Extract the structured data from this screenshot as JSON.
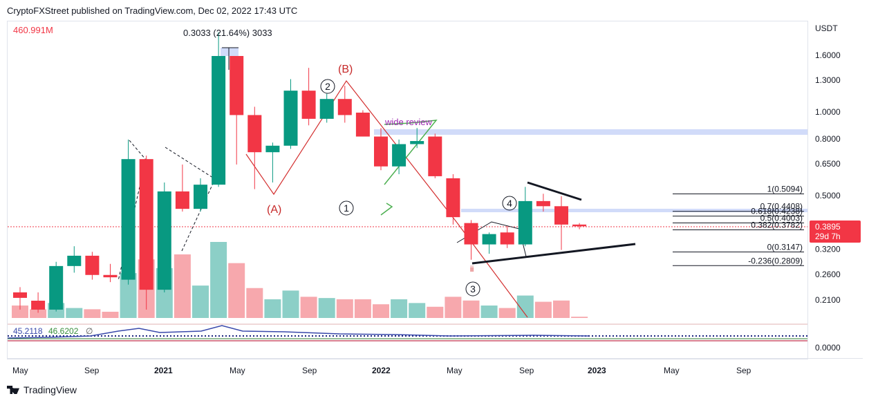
{
  "header": {
    "publisher": "CryptoFXStreet published on TradingView.com, Dec 02, 2022 17:43 UTC"
  },
  "footer": {
    "brand": "TradingView"
  },
  "volume_label": "460.991M",
  "currency": "USDT",
  "last_price": {
    "value": "0.3895",
    "countdown": "29d 7h"
  },
  "colors": {
    "up": "#089981",
    "down": "#f23645",
    "up_vol": "#8ccfc7",
    "down_vol": "#f7a8ad",
    "zone": "#c5d2f7",
    "wave_green": "#4caf50",
    "purple": "#9c27b0",
    "rsi": "#3949ab"
  },
  "annotations": {
    "measure": "0.3033 (21.64%) 3033",
    "wave_B": "(B)",
    "wave_A": "(A)",
    "wave_1": "1",
    "wave_2": "2",
    "wave_3": "3",
    "wave_4": "4",
    "wave_ii": "ii",
    "wide_review": "wide review"
  },
  "fib_levels": [
    {
      "label": "1(0.5094)",
      "price": 0.5094
    },
    {
      "label": "0.7(0.4408)",
      "price": 0.4408
    },
    {
      "label": "0.618(0.4238)",
      "price": 0.4238
    },
    {
      "label": "0.5(0.4003)",
      "price": 0.4003
    },
    {
      "label": "0.382(0.3782)",
      "price": 0.3782
    },
    {
      "label": "0(0.3147)",
      "price": 0.3147
    },
    {
      "label": "-0.236(0.2809)",
      "price": 0.2809
    }
  ],
  "indicator": {
    "value1": "45.2118",
    "value2": "46.6202",
    "extra": "∅"
  },
  "chart_data": {
    "type": "candlestick",
    "title": "",
    "ylabel": "USDT",
    "y_scale": "log",
    "y_ticks": [
      "1.6000",
      "1.3000",
      "1.0000",
      "0.8000",
      "0.6500",
      "0.5000",
      "0.3200",
      "0.2600",
      "0.2100",
      "0.0000"
    ],
    "x_ticks": [
      "May",
      "Sep",
      "2021",
      "May",
      "Sep",
      "2022",
      "May",
      "Sep",
      "2023",
      "May",
      "Sep"
    ],
    "candles": [
      {
        "o": 0.225,
        "h": 0.235,
        "l": 0.195,
        "c": 0.215,
        "v": 0.1
      },
      {
        "o": 0.21,
        "h": 0.225,
        "l": 0.19,
        "c": 0.195,
        "v": 0.07
      },
      {
        "o": 0.195,
        "h": 0.29,
        "l": 0.192,
        "c": 0.28,
        "v": 0.12
      },
      {
        "o": 0.28,
        "h": 0.33,
        "l": 0.265,
        "c": 0.305,
        "v": 0.08
      },
      {
        "o": 0.305,
        "h": 0.315,
        "l": 0.25,
        "c": 0.26,
        "v": 0.07
      },
      {
        "o": 0.26,
        "h": 0.285,
        "l": 0.245,
        "c": 0.255,
        "v": 0.05
      },
      {
        "o": 0.25,
        "h": 0.8,
        "l": 0.24,
        "c": 0.68,
        "v": 0.36
      },
      {
        "o": 0.68,
        "h": 0.7,
        "l": 0.195,
        "c": 0.23,
        "v": 0.47
      },
      {
        "o": 0.23,
        "h": 0.56,
        "l": 0.225,
        "c": 0.52,
        "v": 0.4
      },
      {
        "o": 0.52,
        "h": 0.65,
        "l": 0.44,
        "c": 0.45,
        "v": 0.51
      },
      {
        "o": 0.45,
        "h": 0.58,
        "l": 0.44,
        "c": 0.55,
        "v": 0.26
      },
      {
        "o": 0.55,
        "h": 1.95,
        "l": 0.54,
        "c": 1.6,
        "v": 0.61
      },
      {
        "o": 1.6,
        "h": 1.6,
        "l": 0.65,
        "c": 0.98,
        "v": 0.44
      },
      {
        "o": 0.98,
        "h": 1.05,
        "l": 0.53,
        "c": 0.72,
        "v": 0.24
      },
      {
        "o": 0.72,
        "h": 0.78,
        "l": 0.56,
        "c": 0.76,
        "v": 0.15
      },
      {
        "o": 0.76,
        "h": 1.32,
        "l": 0.74,
        "c": 1.2,
        "v": 0.22
      },
      {
        "o": 1.2,
        "h": 1.45,
        "l": 0.9,
        "c": 0.95,
        "v": 0.17
      },
      {
        "o": 0.95,
        "h": 1.17,
        "l": 0.92,
        "c": 1.12,
        "v": 0.16
      },
      {
        "o": 1.12,
        "h": 1.25,
        "l": 0.92,
        "c": 0.98,
        "v": 0.15
      },
      {
        "o": 1.0,
        "h": 1.02,
        "l": 0.82,
        "c": 0.82,
        "v": 0.15
      },
      {
        "o": 0.82,
        "h": 0.88,
        "l": 0.62,
        "c": 0.64,
        "v": 0.11
      },
      {
        "o": 0.64,
        "h": 0.8,
        "l": 0.6,
        "c": 0.77,
        "v": 0.15
      },
      {
        "o": 0.77,
        "h": 0.88,
        "l": 0.745,
        "c": 0.79,
        "v": 0.12
      },
      {
        "o": 0.82,
        "h": 0.84,
        "l": 0.58,
        "c": 0.59,
        "v": 0.09
      },
      {
        "o": 0.58,
        "h": 0.6,
        "l": 0.395,
        "c": 0.42,
        "v": 0.17
      },
      {
        "o": 0.4,
        "h": 0.41,
        "l": 0.295,
        "c": 0.335,
        "v": 0.14
      },
      {
        "o": 0.335,
        "h": 0.37,
        "l": 0.31,
        "c": 0.365,
        "v": 0.1
      },
      {
        "o": 0.37,
        "h": 0.39,
        "l": 0.325,
        "c": 0.335,
        "v": 0.08
      },
      {
        "o": 0.335,
        "h": 0.54,
        "l": 0.33,
        "c": 0.48,
        "v": 0.18
      },
      {
        "o": 0.48,
        "h": 0.51,
        "l": 0.44,
        "c": 0.46,
        "v": 0.13
      },
      {
        "o": 0.46,
        "h": 0.5,
        "l": 0.32,
        "c": 0.395,
        "v": 0.14
      },
      {
        "o": 0.395,
        "h": 0.4,
        "l": 0.38,
        "c": 0.3895,
        "v": 0.01
      }
    ]
  }
}
